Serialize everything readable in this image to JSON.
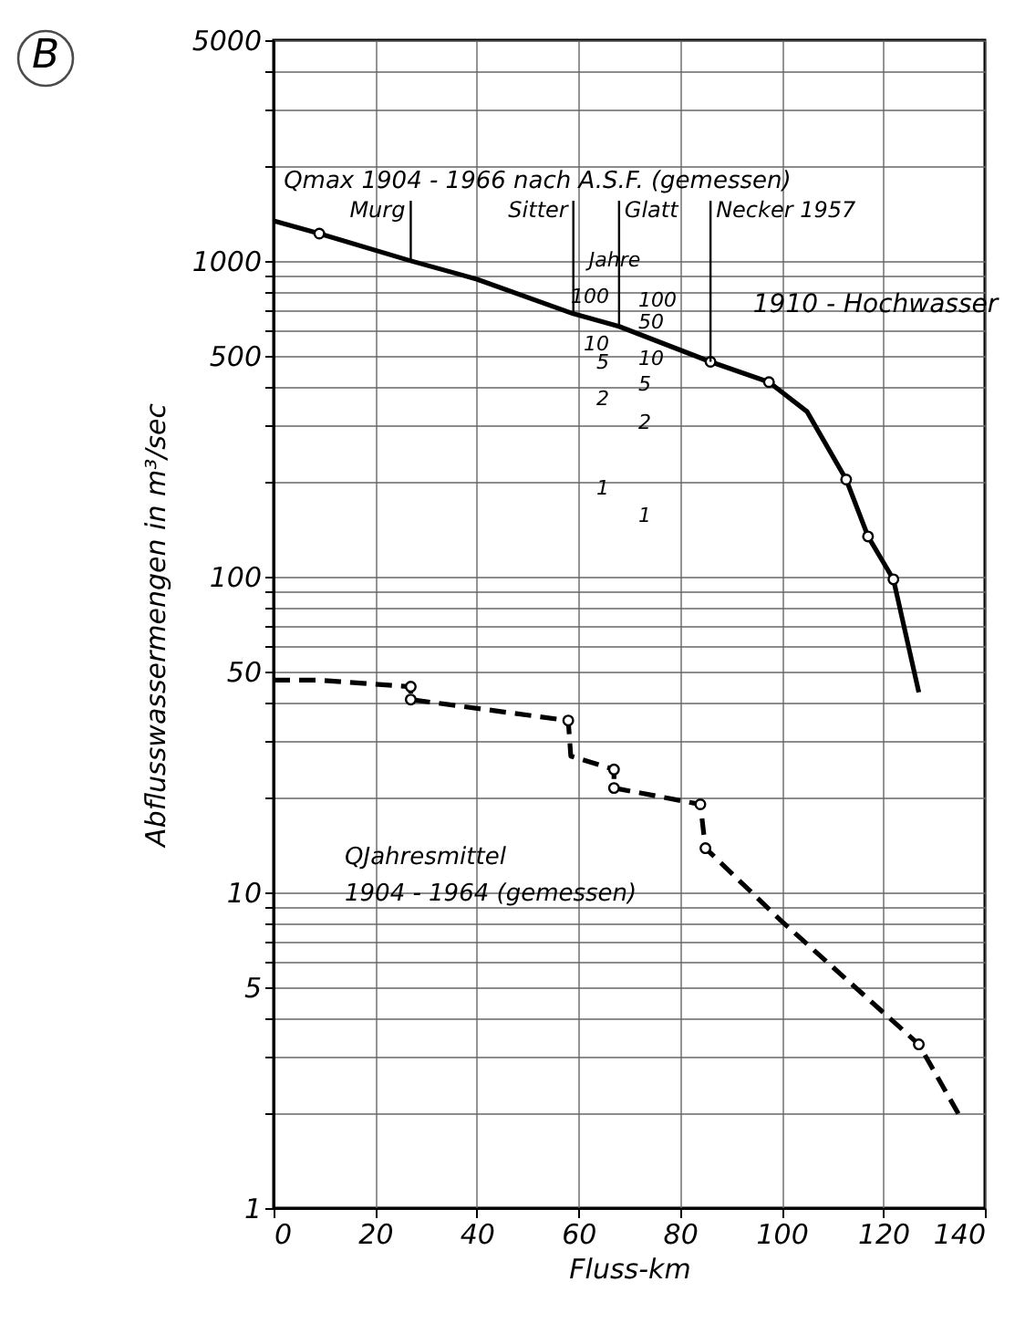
{
  "chart_data": {
    "type": "line",
    "xlabel": "Fluss-km",
    "ylabel": "Abflusswassermengen in m³/sec",
    "log": "y",
    "grid": true,
    "xlim": [
      0,
      140
    ],
    "xticks": [
      0,
      20,
      40,
      60,
      80,
      100,
      120,
      140
    ],
    "ylim": [
      1,
      5000
    ],
    "yticks": [
      1,
      {
        "value": 2,
        "label": null
      },
      {
        "value": 3,
        "label": null
      },
      {
        "value": 4,
        "label": null
      },
      5,
      {
        "value": 6,
        "label": null
      },
      {
        "value": 7,
        "label": null
      },
      {
        "value": 8,
        "label": null
      },
      {
        "value": 9,
        "label": null
      },
      10,
      {
        "value": 20,
        "label": null
      },
      {
        "value": 30,
        "label": null
      },
      {
        "value": 40,
        "label": null
      },
      50,
      {
        "value": 60,
        "label": null
      },
      {
        "value": 70,
        "label": null
      },
      {
        "value": 80,
        "label": null
      },
      {
        "value": 90,
        "label": null
      },
      100,
      {
        "value": 200,
        "label": null
      },
      {
        "value": 300,
        "label": null
      },
      {
        "value": 400,
        "label": null
      },
      500,
      {
        "value": 600,
        "label": null
      },
      {
        "value": 700,
        "label": null
      },
      {
        "value": 800,
        "label": null
      },
      {
        "value": 900,
        "label": null
      },
      1000,
      {
        "value": 2000,
        "label": null
      },
      {
        "value": 3000,
        "label": null
      },
      {
        "value": 4000,
        "label": null
      },
      5000
    ],
    "series": [
      {
        "name": "Qmax 1904 - 1966 nach A.S.F. (gemessen)",
        "color": "#000000",
        "line_style": "solid",
        "x": [
          0,
          9,
          27,
          40,
          59,
          68,
          86,
          97.5,
          105,
          112.7,
          117,
          122,
          127
        ],
        "values": [
          1340,
          1220,
          1000,
          875,
          680,
          620,
          479,
          413,
          333,
          203,
          134,
          98,
          43
        ]
      },
      {
        "name": "QJahresmittel 1904 - 1964 (gemessen)",
        "color": "#000000",
        "line_style": "dashed",
        "x": [
          0,
          9,
          27,
          27,
          58,
          58.5,
          67,
          67,
          84,
          85,
          100,
          127,
          135.5
        ],
        "values": [
          47,
          47,
          44.8,
          40.8,
          35,
          27,
          24.5,
          21.4,
          19,
          13.8,
          8.1,
          3.3,
          1.9
        ]
      },
      {
        "type": "scatter",
        "color": "#000000",
        "marker": "circle",
        "x": [
          9,
          86,
          97.5,
          112.7,
          117,
          122,
          27,
          27,
          58,
          67,
          67,
          84,
          85,
          127
        ],
        "values": [
          1220,
          479,
          413,
          203,
          134,
          98,
          44.8,
          40.8,
          35,
          24.5,
          21.4,
          19,
          13.8,
          3.3
        ]
      }
    ],
    "annotations": [
      "B",
      "1910 - Hochwasser",
      {
        "text": "Murg",
        "x": 27,
        "y": 1000
      },
      {
        "text": "Sitter",
        "x": 59,
        "y": 680
      },
      {
        "text": "Glatt",
        "x": 68,
        "y": 620
      },
      {
        "text": "Necker 1957",
        "x": 86,
        "y": 479
      },
      "Jahre",
      "100",
      "10",
      "5",
      "2",
      "1",
      "100",
      "50",
      "10",
      "5",
      "2",
      "1"
    ]
  }
}
